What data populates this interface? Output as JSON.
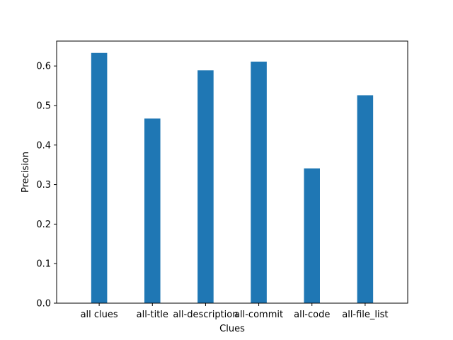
{
  "chart_data": {
    "type": "bar",
    "title": "",
    "xlabel": "Clues",
    "ylabel": "Precision",
    "categories": [
      "all clues",
      "all-title",
      "all-description",
      "all-commit",
      "all-code",
      "all-file_list"
    ],
    "values": [
      0.633,
      0.467,
      0.589,
      0.611,
      0.341,
      0.526
    ],
    "ylim": [
      0,
      0.663
    ],
    "yticks": [
      0.0,
      0.1,
      0.2,
      0.3,
      0.4,
      0.5,
      0.6
    ],
    "ytick_labels": [
      "0.0",
      "0.1",
      "0.2",
      "0.3",
      "0.4",
      "0.5",
      "0.6"
    ],
    "grid": false,
    "legend": "none",
    "bar_color": "#1f77b4"
  }
}
